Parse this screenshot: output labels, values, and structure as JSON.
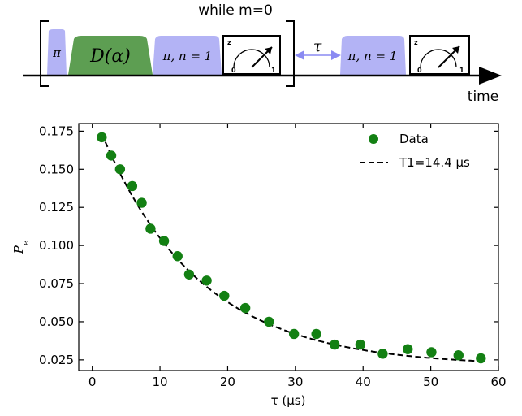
{
  "sequence": {
    "loop_label": "while m=0",
    "time_label": "time",
    "tau_label": "τ",
    "pulses": {
      "pi": "π",
      "displacement": "D(α)",
      "selective_1": "π, n = 1",
      "selective_2": "π, n = 1"
    },
    "meter": {
      "axis_label": "z",
      "zero_label": "0",
      "one_label": "1"
    },
    "colors": {
      "pulse": "#b3b3f5",
      "displacement": "#5d9e52"
    }
  },
  "chart_data": {
    "type": "scatter",
    "xlabel": "τ (μs)",
    "ylabel": "Pe",
    "xlim": [
      -2,
      60
    ],
    "ylim": [
      0.018,
      0.18
    ],
    "xticks": [
      "0",
      "10",
      "20",
      "30",
      "40",
      "50",
      "60"
    ],
    "yticks": [
      "0.025",
      "0.050",
      "0.075",
      "0.100",
      "0.125",
      "0.150",
      "0.175"
    ],
    "legend_position": "top-right",
    "series": [
      {
        "name": "Data",
        "color": "#138013",
        "x": [
          1.4,
          2.8,
          4.1,
          5.9,
          7.3,
          8.6,
          10.6,
          12.6,
          14.3,
          16.9,
          19.5,
          22.6,
          26.1,
          29.8,
          33.1,
          35.8,
          39.6,
          42.9,
          46.6,
          50.1,
          54.1,
          57.4
        ],
        "y": [
          0.171,
          0.159,
          0.15,
          0.139,
          0.128,
          0.111,
          0.103,
          0.093,
          0.081,
          0.077,
          0.067,
          0.059,
          0.05,
          0.042,
          0.042,
          0.035,
          0.035,
          0.029,
          0.032,
          0.03,
          0.028,
          0.026
        ]
      },
      {
        "name": "T1=14.4 μs",
        "style": "dashed",
        "color": "#000000",
        "fit": {
          "amplitude": 0.168,
          "T1": 14.4,
          "offset": 0.021
        }
      }
    ]
  }
}
